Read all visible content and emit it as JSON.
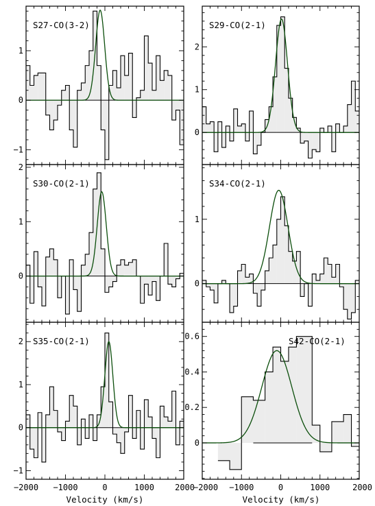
{
  "figure": {
    "xlabels": [
      "Velocity (km/s)",
      "Velocity (km/s)"
    ]
  },
  "chart_data": [
    {
      "type": "line",
      "title": "S27-CO(3-2)",
      "xlim": [
        -2000,
        2000
      ],
      "ylim": [
        -1.3,
        1.9
      ],
      "xticks": [
        -2000,
        -1000,
        0,
        1000,
        2000
      ],
      "yticks": [
        -1,
        0,
        1
      ],
      "ytick_labels": [
        "−1",
        "0",
        "1"
      ],
      "show_xtick_labels": false,
      "step_x": [
        -2000,
        -1900,
        -1800,
        -1700,
        -1600,
        -1500,
        -1400,
        -1300,
        -1200,
        -1100,
        -1000,
        -900,
        -800,
        -700,
        -600,
        -500,
        -400,
        -300,
        -200,
        -100,
        0,
        100,
        200,
        300,
        400,
        500,
        600,
        700,
        800,
        900,
        1000,
        1100,
        1200,
        1300,
        1400,
        1500,
        1600,
        1700,
        1800,
        1900,
        2000
      ],
      "step_y": [
        0.7,
        0.3,
        0.5,
        0.55,
        0.55,
        -0.3,
        -0.6,
        -0.4,
        -0.1,
        0.2,
        0.3,
        -0.6,
        -0.95,
        0.2,
        0.35,
        0.7,
        1.0,
        1.8,
        0.7,
        -0.6,
        -1.2,
        0.3,
        0.6,
        0.25,
        0.9,
        0.5,
        0.95,
        -0.35,
        0.05,
        0.2,
        1.3,
        0.75,
        0.2,
        0.9,
        0.4,
        0.6,
        0.5,
        -0.4,
        -0.2,
        -0.9
      ],
      "fit": {
        "amplitude": 1.82,
        "center": -120,
        "fwhm": 270
      }
    },
    {
      "type": "line",
      "title": "S29-CO(2-1)",
      "xlim": [
        -2000,
        2000
      ],
      "ylim": [
        -0.75,
        2.95
      ],
      "xticks": [
        -2000,
        -1000,
        0,
        1000,
        2000
      ],
      "yticks": [
        0,
        1,
        2
      ],
      "ytick_labels": [
        "0",
        "1",
        "2"
      ],
      "show_xtick_labels": false,
      "step_x": [
        -2000,
        -1900,
        -1800,
        -1700,
        -1600,
        -1500,
        -1400,
        -1300,
        -1200,
        -1100,
        -1000,
        -900,
        -800,
        -700,
        -600,
        -500,
        -400,
        -300,
        -200,
        -100,
        0,
        100,
        200,
        300,
        400,
        500,
        600,
        700,
        800,
        900,
        1000,
        1100,
        1200,
        1300,
        1400,
        1500,
        1600,
        1700,
        1800,
        1900,
        2000
      ],
      "step_y": [
        0.6,
        0.2,
        0.25,
        -0.45,
        0.25,
        -0.35,
        0.15,
        -0.2,
        0.55,
        0.15,
        0.2,
        -0.2,
        0.5,
        -0.5,
        -0.3,
        0.0,
        0.3,
        0.6,
        1.3,
        2.5,
        2.7,
        1.5,
        0.8,
        0.35,
        0.1,
        -0.25,
        -0.2,
        -0.6,
        -0.4,
        -0.45,
        0.1,
        0.0,
        0.15,
        -0.45,
        0.2,
        0.0,
        0.15,
        0.65,
        1.2,
        0.5
      ],
      "fit": {
        "amplitude": 2.65,
        "center": 20,
        "fwhm": 360
      }
    },
    {
      "type": "line",
      "title": "S30-CO(2-1)",
      "xlim": [
        -2000,
        2000
      ],
      "ylim": [
        -0.85,
        2.05
      ],
      "xticks": [
        -2000,
        -1000,
        0,
        1000,
        2000
      ],
      "yticks": [
        0,
        1,
        2
      ],
      "ytick_labels": [
        "0",
        "1",
        "2"
      ],
      "show_xtick_labels": false,
      "step_x": [
        -2000,
        -1900,
        -1800,
        -1700,
        -1600,
        -1500,
        -1400,
        -1300,
        -1200,
        -1100,
        -1000,
        -900,
        -800,
        -700,
        -600,
        -500,
        -400,
        -300,
        -200,
        -100,
        0,
        100,
        200,
        300,
        400,
        500,
        600,
        700,
        800,
        900,
        1000,
        1100,
        1200,
        1300,
        1400,
        1500,
        1600,
        1700,
        1800,
        1900,
        2000
      ],
      "step_y": [
        0.2,
        -0.5,
        0.45,
        -0.2,
        -0.55,
        0.35,
        0.5,
        0.3,
        -0.4,
        0.0,
        -0.7,
        0.3,
        -0.25,
        -0.65,
        0.2,
        0.4,
        0.8,
        1.6,
        1.9,
        0.5,
        -0.3,
        -0.2,
        -0.1,
        0.2,
        0.3,
        0.2,
        0.25,
        0.3,
        0.0,
        -0.5,
        -0.15,
        -0.35,
        -0.1,
        -0.45,
        0.0,
        0.6,
        -0.15,
        -0.2,
        -0.05,
        0.05
      ],
      "fit": {
        "amplitude": 1.55,
        "center": -80,
        "fwhm": 270
      }
    },
    {
      "type": "line",
      "title": "S34-CO(2-1)",
      "xlim": [
        -2000,
        2000
      ],
      "ylim": [
        -0.6,
        1.85
      ],
      "xticks": [
        -2000,
        -1000,
        0,
        1000,
        2000
      ],
      "yticks": [
        0,
        1
      ],
      "ytick_labels": [
        "0",
        "1"
      ],
      "show_xtick_labels": false,
      "step_x": [
        -2000,
        -1900,
        -1800,
        -1700,
        -1600,
        -1500,
        -1400,
        -1300,
        -1200,
        -1100,
        -1000,
        -900,
        -800,
        -700,
        -600,
        -500,
        -400,
        -300,
        -200,
        -100,
        0,
        100,
        200,
        300,
        400,
        500,
        600,
        700,
        800,
        900,
        1000,
        1100,
        1200,
        1300,
        1400,
        1500,
        1600,
        1700,
        1800,
        1900,
        2000
      ],
      "step_y": [
        0.05,
        -0.05,
        -0.1,
        -0.3,
        0.0,
        0.05,
        0.0,
        -0.45,
        -0.35,
        0.2,
        0.3,
        0.1,
        0.15,
        -0.15,
        -0.35,
        -0.1,
        0.2,
        0.4,
        0.6,
        1.0,
        1.35,
        0.9,
        0.5,
        0.35,
        0.5,
        -0.2,
        0.0,
        -0.35,
        0.15,
        0.05,
        0.15,
        0.4,
        0.3,
        0.1,
        0.3,
        -0.05,
        -0.4,
        -0.55,
        -0.45,
        0.05
      ],
      "fit": {
        "amplitude": 1.45,
        "center": -50,
        "fwhm": 560
      }
    },
    {
      "type": "line",
      "title": "S35-CO(2-1)",
      "xlim": [
        -2000,
        2000
      ],
      "ylim": [
        -1.2,
        2.45
      ],
      "xticks": [
        -2000,
        -1000,
        0,
        1000,
        2000
      ],
      "xtick_labels": [
        "−2000",
        "−1000",
        "0",
        "1000",
        "2000"
      ],
      "yticks": [
        -1,
        0,
        1,
        2
      ],
      "ytick_labels": [
        "−1",
        "0",
        "1",
        "2"
      ],
      "show_xtick_labels": true,
      "xlabel": "Velocity (km/s)",
      "step_x": [
        -2000,
        -1900,
        -1800,
        -1700,
        -1600,
        -1500,
        -1400,
        -1300,
        -1200,
        -1100,
        -1000,
        -900,
        -800,
        -700,
        -600,
        -500,
        -400,
        -300,
        -200,
        -100,
        0,
        100,
        200,
        300,
        400,
        500,
        600,
        700,
        800,
        900,
        1000,
        1100,
        1200,
        1300,
        1400,
        1500,
        1600,
        1700,
        1800,
        1900,
        2000
      ],
      "step_y": [
        0.3,
        -0.5,
        -0.7,
        0.35,
        -0.8,
        0.3,
        0.95,
        0.4,
        -0.1,
        -0.3,
        0.15,
        0.75,
        0.5,
        -0.4,
        0.2,
        -0.25,
        0.3,
        -0.3,
        0.3,
        0.95,
        2.2,
        0.6,
        -0.15,
        -0.35,
        -0.6,
        -0.1,
        0.75,
        -0.25,
        0.4,
        -0.5,
        0.65,
        0.25,
        -0.25,
        -0.7,
        0.5,
        0.25,
        0.15,
        0.85,
        -0.4,
        0.15
      ],
      "fit": {
        "amplitude": 2.0,
        "center": 100,
        "fwhm": 240
      }
    },
    {
      "type": "line",
      "title": "S42-CO(2-1)",
      "xlim": [
        -2000,
        2000
      ],
      "ylim": [
        -0.205,
        0.68
      ],
      "xticks": [
        -2000,
        -1000,
        0,
        1000,
        2000
      ],
      "xtick_labels": [
        "−2000",
        "−1000",
        "0",
        "1000",
        "2000"
      ],
      "yticks": [
        0.0,
        0.2,
        0.4,
        0.6
      ],
      "ytick_labels": [
        "0",
        "0.2",
        "0.4",
        "0.6"
      ],
      "show_xtick_labels": true,
      "xlabel": "Velocity (km/s)",
      "step_x": [
        -1600,
        -1300,
        -1000,
        -700,
        -400,
        -200,
        0,
        200,
        400,
        800,
        1000,
        1300,
        1600,
        1800,
        2000
      ],
      "step_y": [
        -0.1,
        -0.15,
        0.26,
        0.24,
        0.4,
        0.54,
        0.46,
        0.54,
        0.6,
        0.1,
        -0.05,
        0.12,
        0.16,
        -0.02,
        -0.19
      ],
      "baseline_segment": [
        -700,
        800
      ],
      "fit": {
        "amplitude": 0.52,
        "center": -100,
        "fwhm": 900
      }
    }
  ]
}
